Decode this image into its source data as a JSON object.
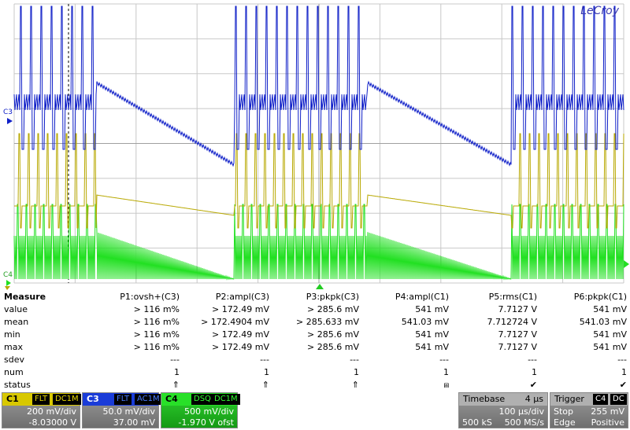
{
  "scope": {
    "brand": "LeCroy",
    "trace_labels": {
      "c3": "C3",
      "c4": "C4"
    },
    "colors": {
      "c1": "#b8a800",
      "c3": "#1020c8",
      "c4": "#22e022",
      "grid": "#c8c8c8"
    }
  },
  "measure": {
    "title": "Measure",
    "columns": [
      "P1:ovsh+(C3)",
      "P2:ampl(C3)",
      "P3:pkpk(C3)",
      "P4:ampl(C1)",
      "P5:rms(C1)",
      "P6:pkpk(C1)"
    ],
    "rows": [
      {
        "label": "value",
        "cells": [
          "> 116 m%",
          "> 172.49 mV",
          "> 285.6 mV",
          "541 mV",
          "7.7127 V",
          "541 mV"
        ]
      },
      {
        "label": "mean",
        "cells": [
          "> 116 m%",
          "> 172.4904 mV",
          "> 285.633 mV",
          "541.03 mV",
          "7.712724 V",
          "541.03 mV"
        ]
      },
      {
        "label": "min",
        "cells": [
          "> 116 m%",
          "> 172.49 mV",
          "> 285.6 mV",
          "541 mV",
          "7.7127 V",
          "541 mV"
        ]
      },
      {
        "label": "max",
        "cells": [
          "> 116 m%",
          "> 172.49 mV",
          "> 285.6 mV",
          "541 mV",
          "7.7127 V",
          "541 mV"
        ]
      },
      {
        "label": "sdev",
        "cells": [
          "---",
          "---",
          "---",
          "---",
          "---",
          "---"
        ]
      },
      {
        "label": "num",
        "cells": [
          "1",
          "1",
          "1",
          "1",
          "1",
          "1"
        ]
      },
      {
        "label": "status",
        "cells": [
          "⇑",
          "⇑",
          "⇑",
          "⩎",
          "✔",
          "✔"
        ]
      }
    ]
  },
  "channels": {
    "c1": {
      "name": "C1",
      "tag1": "FLT",
      "tag2": "DC1M",
      "scale": "200 mV/div",
      "offset": "-8.03000 V"
    },
    "c3": {
      "name": "C3",
      "tag1": "FLT",
      "tag2": "AC1M",
      "scale": "50.0 mV/div",
      "offset": "37.00 mV"
    },
    "c4": {
      "name": "C4",
      "tag1": "DSQ",
      "tag2": "DC1M",
      "scale": "500 mV/div",
      "offset": "-1.970 V ofst"
    }
  },
  "timebase": {
    "label": "Timebase",
    "delay": "4 µs",
    "per_div": "100 µs/div",
    "samples": "500 kS",
    "rate": "500 MS/s"
  },
  "trigger": {
    "label": "Trigger",
    "source": "C4",
    "coupling": "DC",
    "mode": "Stop",
    "level": "255 mV",
    "type": "Edge",
    "slope": "Positive"
  }
}
